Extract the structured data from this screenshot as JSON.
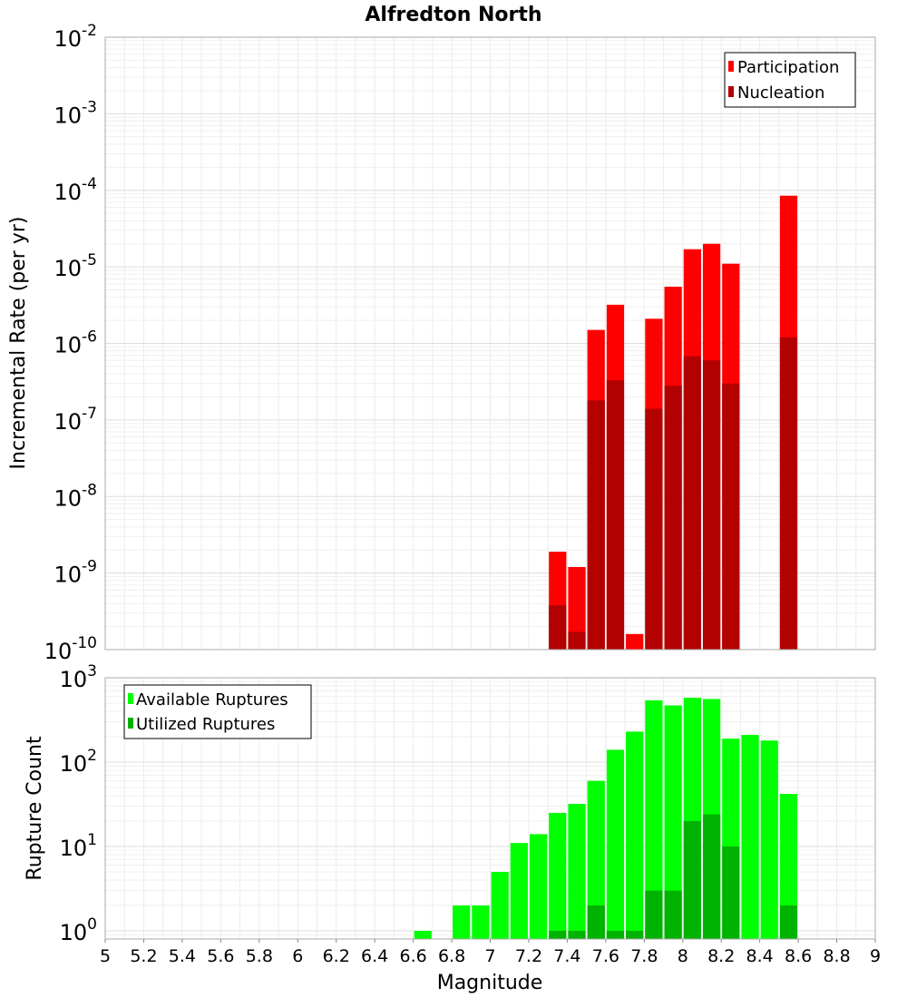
{
  "chart_data": [
    {
      "type": "bar",
      "title": "Alfredton North",
      "xlabel": "",
      "ylabel": "Incremental Rate (per yr)",
      "yscale": "log",
      "ylim": [
        1e-10,
        0.01
      ],
      "xlim": [
        5,
        9
      ],
      "bar_width": 0.1,
      "grid": true,
      "legend": "top-right",
      "y_ticks": [
        {
          "base": "10",
          "exp": "-2"
        },
        {
          "base": "10",
          "exp": "-3"
        },
        {
          "base": "10",
          "exp": "-4"
        },
        {
          "base": "10",
          "exp": "-5"
        },
        {
          "base": "10",
          "exp": "-6"
        },
        {
          "base": "10",
          "exp": "-7"
        },
        {
          "base": "10",
          "exp": "-8"
        },
        {
          "base": "10",
          "exp": "-9"
        },
        {
          "base": "10",
          "exp": "-10"
        }
      ],
      "series": [
        {
          "name": "Participation",
          "color": "#ff0000",
          "x": [
            7.35,
            7.45,
            7.55,
            7.65,
            7.75,
            7.85,
            7.95,
            8.05,
            8.15,
            8.25,
            8.55
          ],
          "values": [
            1.9e-09,
            1.2e-09,
            1.5e-06,
            3.2e-06,
            1.6e-10,
            2.1e-06,
            5.5e-06,
            1.7e-05,
            2e-05,
            1.1e-05,
            8.5e-05
          ]
        },
        {
          "name": "Nucleation",
          "color": "#b30000",
          "x": [
            7.35,
            7.45,
            7.55,
            7.65,
            7.85,
            7.95,
            8.05,
            8.15,
            8.25,
            8.55
          ],
          "values": [
            3.8e-10,
            1.7e-10,
            1.8e-07,
            3.3e-07,
            1.4e-07,
            2.8e-07,
            6.8e-07,
            6e-07,
            3e-07,
            1.2e-06
          ]
        }
      ]
    },
    {
      "type": "bar",
      "title": "",
      "xlabel": "Magnitude",
      "ylabel": "Rupture Count",
      "yscale": "log",
      "ylim": [
        0.8,
        1000
      ],
      "xlim": [
        5,
        9
      ],
      "bar_width": 0.1,
      "grid": true,
      "legend": "top-left",
      "x_ticks": [
        "5",
        "5.2",
        "5.4",
        "5.6",
        "5.8",
        "6",
        "6.2",
        "6.4",
        "6.6",
        "6.8",
        "7",
        "7.2",
        "7.4",
        "7.6",
        "7.8",
        "8",
        "8.2",
        "8.4",
        "8.6",
        "8.8",
        "9"
      ],
      "y_ticks": [
        {
          "base": "10",
          "exp": "3"
        },
        {
          "base": "10",
          "exp": "2"
        },
        {
          "base": "10",
          "exp": "1"
        },
        {
          "base": "10",
          "exp": "0"
        }
      ],
      "series": [
        {
          "name": "Available Ruptures",
          "color": "#00ff00",
          "x": [
            6.65,
            6.85,
            6.95,
            7.05,
            7.15,
            7.25,
            7.35,
            7.45,
            7.55,
            7.65,
            7.75,
            7.85,
            7.95,
            8.05,
            8.15,
            8.25,
            8.35,
            8.45,
            8.55
          ],
          "values": [
            1,
            2,
            2,
            5,
            11,
            14,
            25,
            32,
            60,
            140,
            230,
            540,
            470,
            580,
            560,
            190,
            210,
            180,
            42
          ]
        },
        {
          "name": "Utilized Ruptures",
          "color": "#00b300",
          "x": [
            7.35,
            7.45,
            7.55,
            7.65,
            7.75,
            7.85,
            7.95,
            8.05,
            8.15,
            8.25,
            8.55
          ],
          "values": [
            1,
            1,
            2,
            1,
            1,
            3,
            3,
            20,
            24,
            10,
            2
          ]
        }
      ]
    }
  ]
}
